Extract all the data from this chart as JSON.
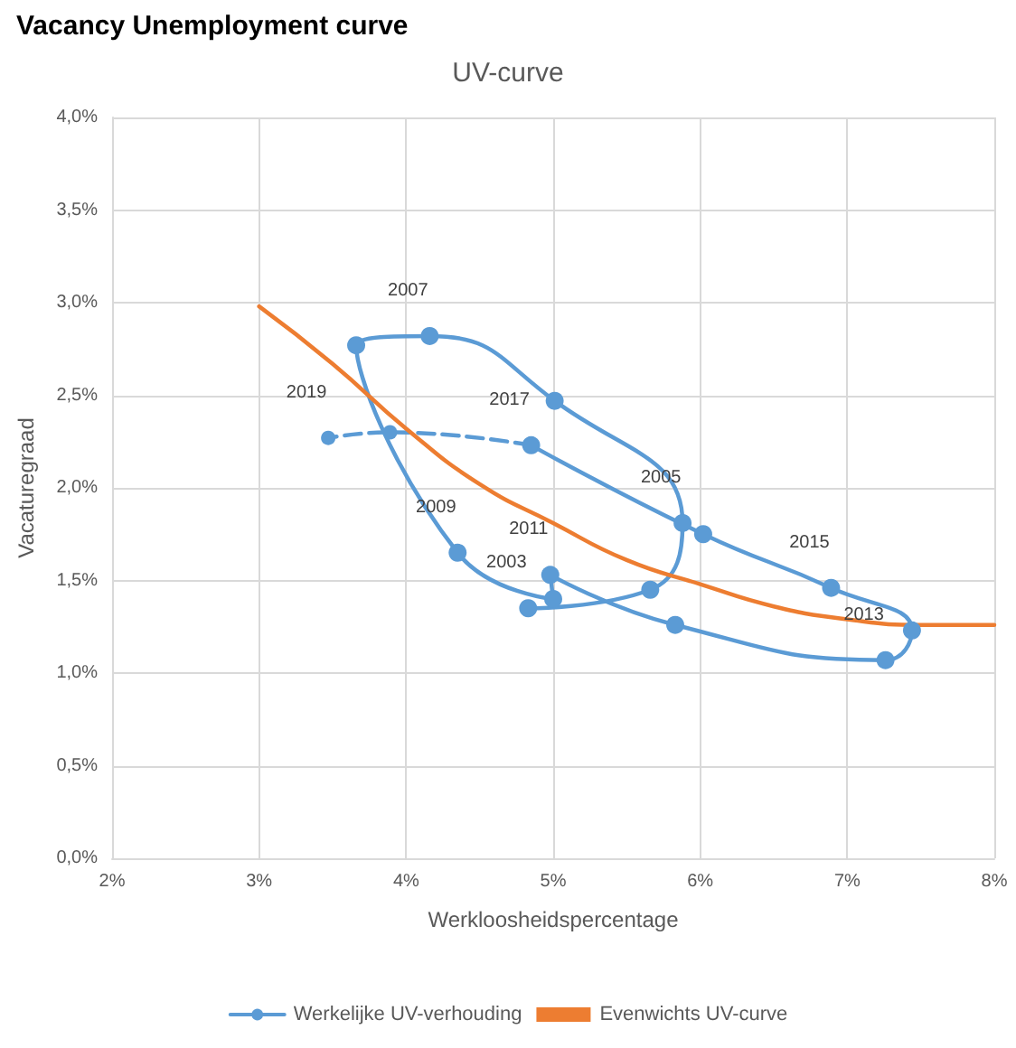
{
  "chart_data": {
    "type": "line",
    "title": "Vacancy Unemployment curve",
    "subtitle": "UV-curve",
    "xlabel": "Werkloosheidspercentage",
    "ylabel": "Vacaturegraad",
    "series": [
      {
        "name": "Werkelijke UV-verhouding",
        "color": "#5b9bd5",
        "x": [
          4.83,
          5.66,
          5.88,
          5.01,
          4.16,
          3.66,
          4.35,
          5.0,
          4.98,
          5.83,
          7.26,
          7.44,
          6.89,
          6.02,
          4.85
        ],
        "values": [
          1.35,
          1.45,
          1.81,
          2.47,
          2.82,
          2.77,
          1.65,
          1.4,
          1.53,
          1.26,
          1.07,
          1.23,
          1.46,
          1.75,
          2.23
        ],
        "marker": "circle",
        "line_style": "solid"
      },
      {
        "color": "#5b9bd5",
        "x": [
          4.85,
          3.89,
          3.47
        ],
        "values": [
          2.23,
          2.3,
          2.27
        ],
        "marker": "circle",
        "line_style": "dashed"
      },
      {
        "name": "Evenwichts UV-curve",
        "color": "#ed7d31",
        "x": [
          3,
          3.5,
          4,
          4.5,
          5,
          5.5,
          6,
          6.5,
          7,
          7.5,
          8
        ],
        "values": [
          2.98,
          2.67,
          2.32,
          2.02,
          1.81,
          1.61,
          1.48,
          1.36,
          1.29,
          1.26,
          1.26
        ],
        "marker": "none",
        "line_style": "solid"
      }
    ],
    "annotations": [
      {
        "text": "2003",
        "x": 4.83,
        "y": 1.35
      },
      {
        "text": "2005",
        "x": 5.88,
        "y": 1.81
      },
      {
        "text": "2007",
        "x": 4.16,
        "y": 2.82
      },
      {
        "text": "2009",
        "x": 4.35,
        "y": 1.65
      },
      {
        "text": "2011",
        "x": 4.98,
        "y": 1.53
      },
      {
        "text": "2013",
        "x": 7.26,
        "y": 1.07
      },
      {
        "text": "2015",
        "x": 6.89,
        "y": 1.46
      },
      {
        "text": "2017",
        "x": 4.85,
        "y": 2.23
      },
      {
        "text": "2019",
        "x": 3.47,
        "y": 2.27
      }
    ],
    "xlim": [
      2,
      8
    ],
    "xticks": [
      {
        "value": 2,
        "label": "2%"
      },
      {
        "value": 3,
        "label": "3%"
      },
      {
        "value": 4,
        "label": "4%"
      },
      {
        "value": 5,
        "label": "5%"
      },
      {
        "value": 6,
        "label": "6%"
      },
      {
        "value": 7,
        "label": "7%"
      },
      {
        "value": 8,
        "label": "8%"
      }
    ],
    "ylim": [
      0,
      4
    ],
    "yticks": [
      {
        "value": 0,
        "label": "0,0%"
      },
      {
        "value": 0.5,
        "label": "0,5%"
      },
      {
        "value": 1,
        "label": "1,0%"
      },
      {
        "value": 1.5,
        "label": "1,5%"
      },
      {
        "value": 2,
        "label": "2,0%"
      },
      {
        "value": 2.5,
        "label": "2,5%"
      },
      {
        "value": 3,
        "label": "3,0%"
      },
      {
        "value": 3.5,
        "label": "3,5%"
      },
      {
        "value": 4,
        "label": "4,0%"
      }
    ],
    "grid": true,
    "legend": "bottom"
  }
}
